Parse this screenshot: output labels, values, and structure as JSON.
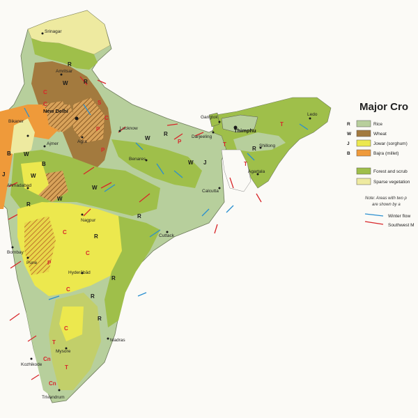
{
  "legend": {
    "title": "Major Cro",
    "crops": [
      {
        "code": "R",
        "label": "Rice",
        "color": "#b8cf9c"
      },
      {
        "code": "W",
        "label": "Wheat",
        "color": "#a37a3e"
      },
      {
        "code": "J",
        "label": "Jowar (sorghum)",
        "color": "#ece84e"
      },
      {
        "code": "B",
        "label": "Bajra (millet)",
        "color": "#ef9a3a"
      }
    ],
    "vegetation": [
      {
        "label": "Forest and scrub",
        "color": "#9fbf4a"
      },
      {
        "label": "Sparse vegetation",
        "color": "#eeeaa0"
      }
    ],
    "note_line1": "Note: Areas with two p",
    "note_line2": "are shown by a",
    "winds": [
      {
        "label": "Winter flow",
        "color": "#2a8fd0"
      },
      {
        "label": "Southwest M",
        "color": "#d8262a"
      }
    ]
  },
  "cities": {
    "srinagar": "Srinagar",
    "amritsar": "Amritsar",
    "new_delhi": "New Delhi",
    "bikaner": "Bikaner",
    "ajmer": "Ajmer",
    "agra": "Agra",
    "lucknow": "Lucknow",
    "benares": "Benares",
    "ahmadabad": "Ahmadabad",
    "nagpur": "Nagpur",
    "bombay": "Bombay",
    "pune": "Pune",
    "hyderabad": "Hyderābād",
    "calcutta": "Calcutta",
    "cuttack": "Cuttack",
    "madras": "Madras",
    "mysore": "Mysore",
    "kozhikode": "Kozhikode",
    "trivandrum": "Trivandrum",
    "gangtok": "Gangtok",
    "darjeeling": "Darjeeling",
    "thimphu": "Thimphu",
    "shillong": "Shillong",
    "agartala": "Agartala",
    "ledo": "Ledo"
  },
  "crop_labels": [
    {
      "code": "R",
      "color": "#1a1a1a"
    },
    {
      "code": "W",
      "color": "#1a1a1a"
    },
    {
      "code": "C",
      "color": "#d8262a"
    },
    {
      "code": "S",
      "color": "#d8262a"
    },
    {
      "code": "P",
      "color": "#d8262a"
    },
    {
      "code": "J",
      "color": "#1a1a1a"
    },
    {
      "code": "B",
      "color": "#1a1a1a"
    },
    {
      "code": "T",
      "color": "#d8262a"
    },
    {
      "code": "Cn",
      "color": "#d8262a"
    }
  ]
}
